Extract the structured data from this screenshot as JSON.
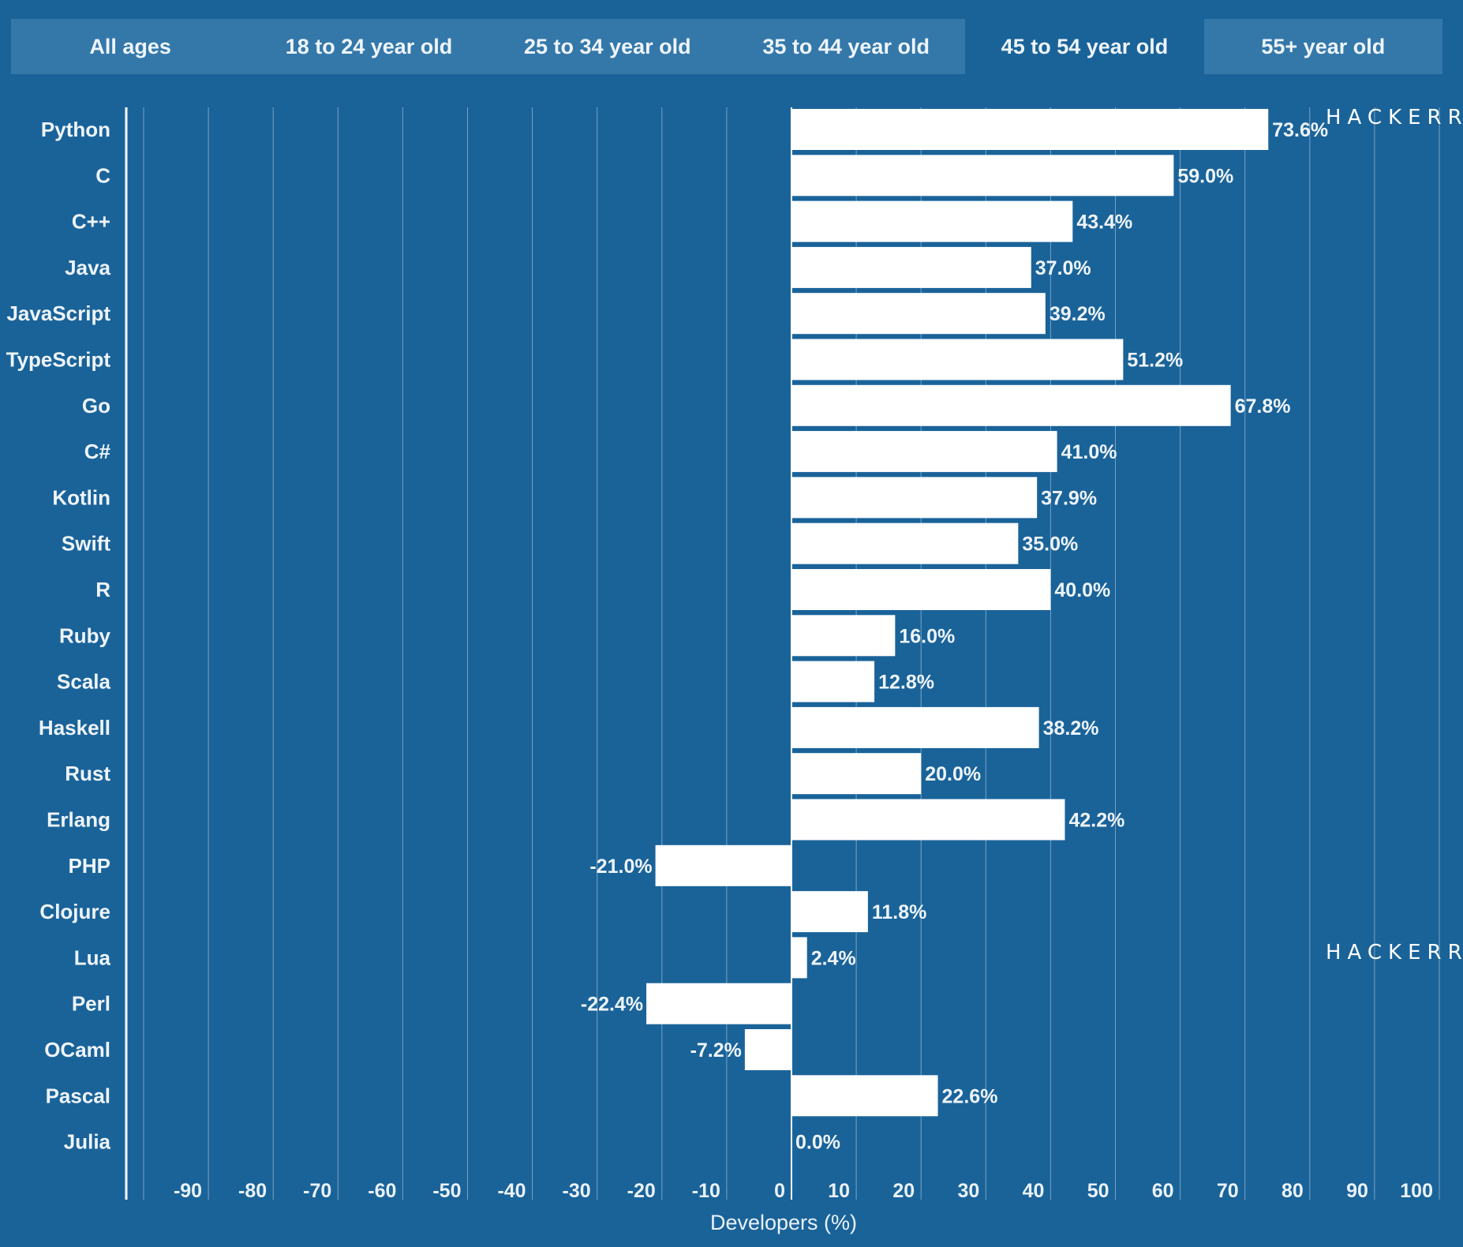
{
  "tabs": [
    {
      "label": "All ages",
      "active": false
    },
    {
      "label": "18 to 24 year old",
      "active": false
    },
    {
      "label": "25 to 34 year old",
      "active": false
    },
    {
      "label": "35 to 44 year old",
      "active": false
    },
    {
      "label": "45 to 54 year old",
      "active": true
    },
    {
      "label": "55+ year old",
      "active": false
    }
  ],
  "watermark": "HACKERR",
  "colors": {
    "background": "#1a6399",
    "bar": "#ffffff",
    "tab_bar": "#3478aa",
    "grid": "#8fb3cf"
  },
  "chart_data": {
    "type": "bar",
    "orientation": "horizontal",
    "categories": [
      "Python",
      "C",
      "C++",
      "Java",
      "JavaScript",
      "TypeScript",
      "Go",
      "C#",
      "Kotlin",
      "Swift",
      "R",
      "Ruby",
      "Scala",
      "Haskell",
      "Rust",
      "Erlang",
      "PHP",
      "Clojure",
      "Lua",
      "Perl",
      "OCaml",
      "Pascal",
      "Julia"
    ],
    "values": [
      73.6,
      59.0,
      43.4,
      37.0,
      39.2,
      51.2,
      67.8,
      41.0,
      37.9,
      35.0,
      40.0,
      16.0,
      12.8,
      38.2,
      20.0,
      42.2,
      -21.0,
      11.8,
      2.4,
      -22.4,
      -7.2,
      22.6,
      0.0
    ],
    "value_labels": [
      "73.6%",
      "59.0%",
      "43.4%",
      "37.0%",
      "39.2%",
      "51.2%",
      "67.8%",
      "41.0%",
      "37.9%",
      "35.0%",
      "40.0%",
      "16.0%",
      "12.8%",
      "38.2%",
      "20.0%",
      "42.2%",
      "-21.0%",
      "11.8%",
      "2.4%",
      "-22.4%",
      "-7.2%",
      "22.6%",
      "0.0%"
    ],
    "xlabel": "Developers (%)",
    "ylabel": "",
    "xlim": [
      -100,
      100
    ],
    "xticks": [
      -90,
      -80,
      -70,
      -60,
      -50,
      -40,
      -30,
      -20,
      -10,
      0,
      10,
      20,
      30,
      40,
      50,
      60,
      70,
      80,
      90,
      100
    ],
    "grid": "vertical",
    "legend": "none"
  }
}
